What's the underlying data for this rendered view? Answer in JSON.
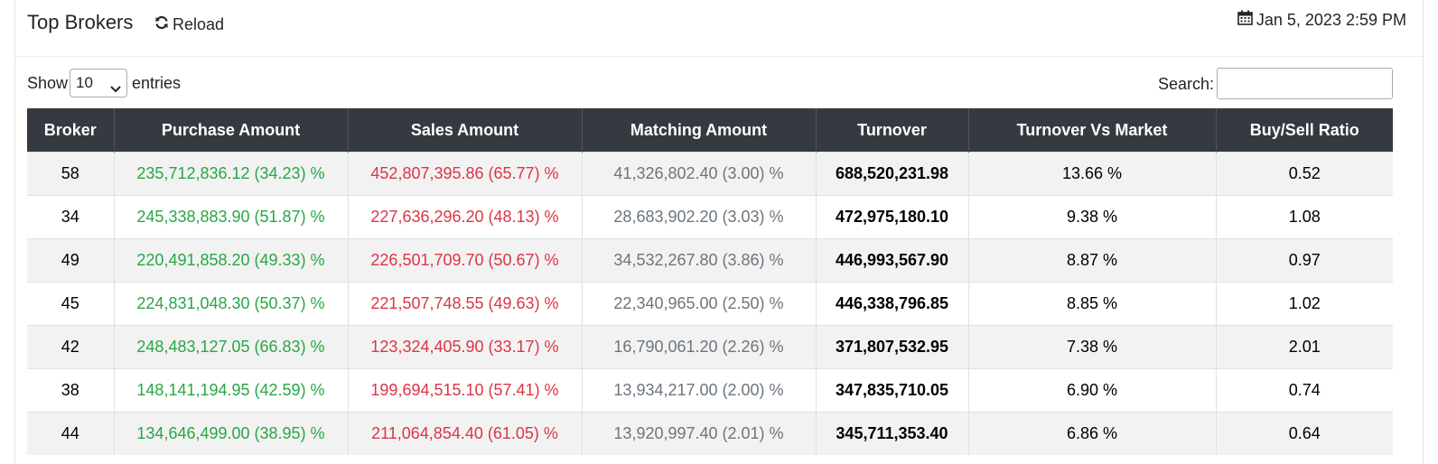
{
  "header": {
    "title": "Top Brokers",
    "reload_label": "Reload",
    "timestamp": "Jan 5, 2023 2:59 PM"
  },
  "controls": {
    "show_label": "Show",
    "entries_label": "entries",
    "page_length": "10",
    "search_label": "Search:",
    "search_value": ""
  },
  "table": {
    "columns": [
      "Broker",
      "Purchase Amount",
      "Sales Amount",
      "Matching Amount",
      "Turnover",
      "Turnover Vs Market",
      "Buy/Sell Ratio"
    ],
    "rows": [
      {
        "broker": "58",
        "purchase": "235,712,836.12 (34.23) %",
        "sales": "452,807,395.86 (65.77) %",
        "matching": "41,326,802.40 (3.00) %",
        "turnover": "688,520,231.98",
        "vs_market": "13.66 %",
        "ratio": "0.52"
      },
      {
        "broker": "34",
        "purchase": "245,338,883.90 (51.87) %",
        "sales": "227,636,296.20 (48.13) %",
        "matching": "28,683,902.20 (3.03) %",
        "turnover": "472,975,180.10",
        "vs_market": "9.38 %",
        "ratio": "1.08"
      },
      {
        "broker": "49",
        "purchase": "220,491,858.20 (49.33) %",
        "sales": "226,501,709.70 (50.67) %",
        "matching": "34,532,267.80 (3.86) %",
        "turnover": "446,993,567.90",
        "vs_market": "8.87 %",
        "ratio": "0.97"
      },
      {
        "broker": "45",
        "purchase": "224,831,048.30 (50.37) %",
        "sales": "221,507,748.55 (49.63) %",
        "matching": "22,340,965.00 (2.50) %",
        "turnover": "446,338,796.85",
        "vs_market": "8.85 %",
        "ratio": "1.02"
      },
      {
        "broker": "42",
        "purchase": "248,483,127.05 (66.83) %",
        "sales": "123,324,405.90 (33.17) %",
        "matching": "16,790,061.20 (2.26) %",
        "turnover": "371,807,532.95",
        "vs_market": "7.38 %",
        "ratio": "2.01"
      },
      {
        "broker": "38",
        "purchase": "148,141,194.95 (42.59) %",
        "sales": "199,694,515.10 (57.41) %",
        "matching": "13,934,217.00 (2.00) %",
        "turnover": "347,835,710.05",
        "vs_market": "6.90 %",
        "ratio": "0.74"
      },
      {
        "broker": "44",
        "purchase": "134,646,499.00 (38.95) %",
        "sales": "211,064,854.40 (61.05) %",
        "matching": "13,920,997.40 (2.01) %",
        "turnover": "345,711,353.40",
        "vs_market": "6.86 %",
        "ratio": "0.64"
      }
    ]
  },
  "colors": {
    "header_bg": "#343a40",
    "purchase": "#28a745",
    "sales": "#dc3545",
    "matching": "#6c757d"
  },
  "icons": {
    "reload": "refresh-icon",
    "timestamp": "calendar-icon",
    "select": "chevron-down-icon"
  }
}
